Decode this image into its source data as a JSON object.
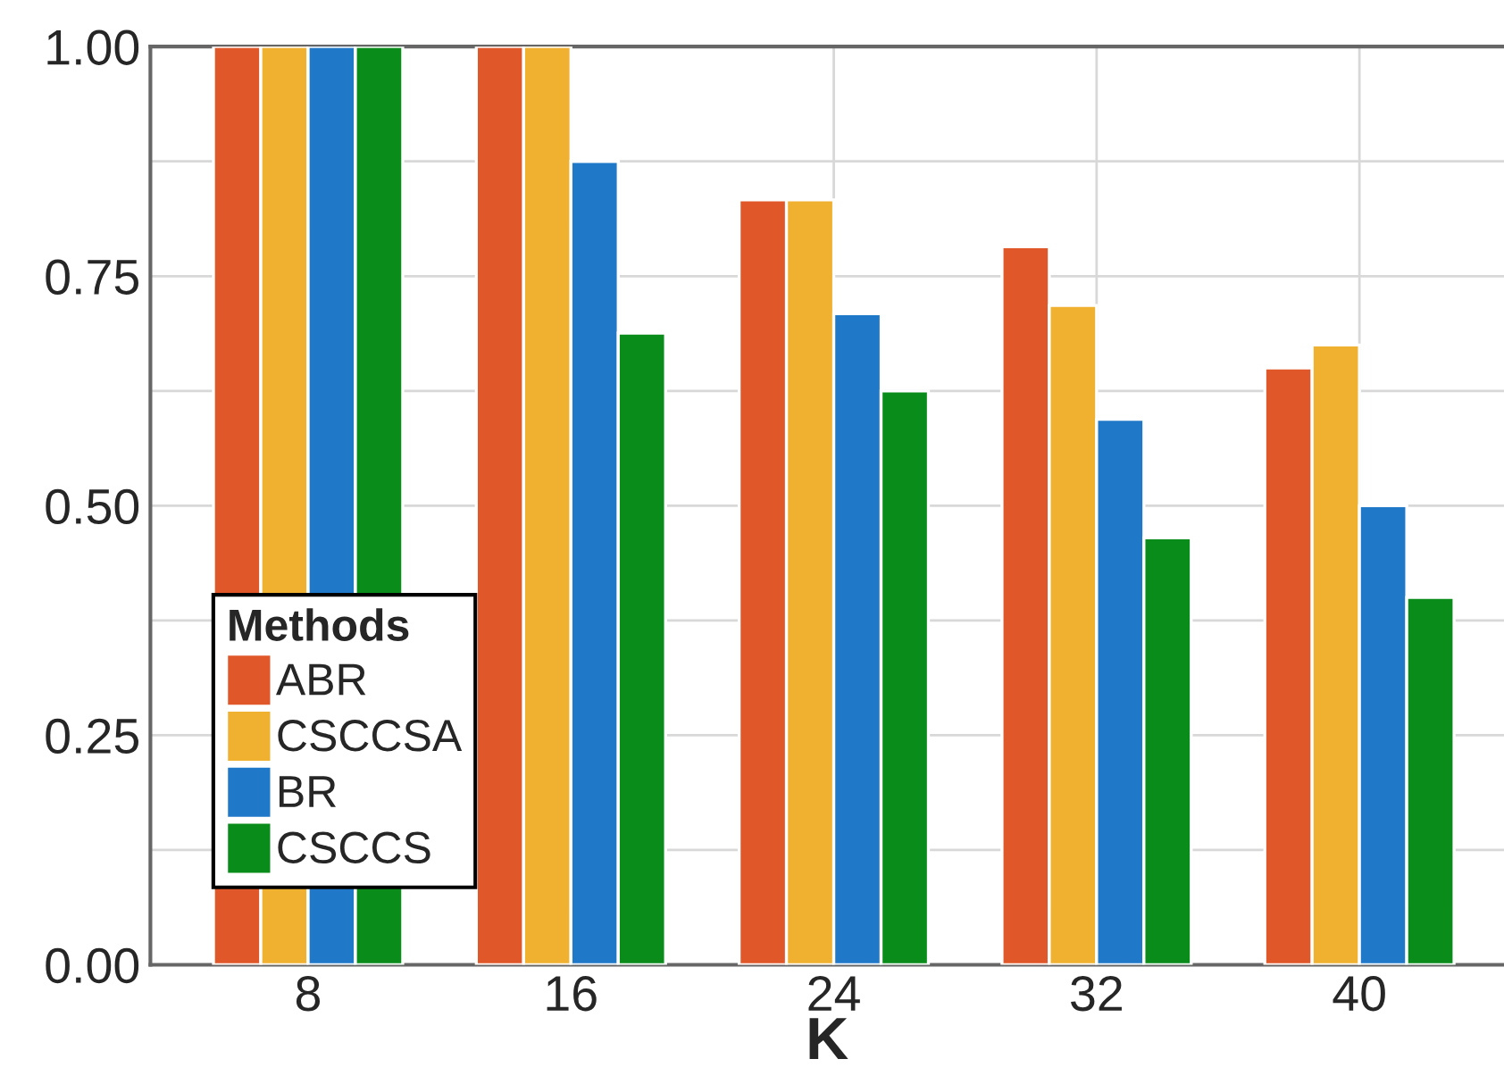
{
  "chart_data": {
    "type": "bar",
    "xlabel": "K",
    "legend_title": "Methods",
    "categories": [
      "8",
      "16",
      "24",
      "32",
      "40"
    ],
    "series": [
      {
        "name": "ABR",
        "color": "#e0582a",
        "values": [
          1.0,
          1.0,
          0.833,
          0.782,
          0.65
        ]
      },
      {
        "name": "CSCCSA",
        "color": "#f0b030",
        "values": [
          1.0,
          1.0,
          0.833,
          0.718,
          0.675
        ]
      },
      {
        "name": "BR",
        "color": "#1f78c8",
        "values": [
          1.0,
          0.875,
          0.709,
          0.594,
          0.5
        ]
      },
      {
        "name": "CSCCS",
        "color": "#0a8c1a",
        "values": [
          1.0,
          0.688,
          0.625,
          0.465,
          0.4
        ]
      }
    ],
    "ylim": [
      0,
      1
    ],
    "yticks": [
      {
        "value": 0,
        "label": "0.00"
      },
      {
        "value": 0.125,
        "label": null
      },
      {
        "value": 0.25,
        "label": "0.25"
      },
      {
        "value": 0.375,
        "label": null
      },
      {
        "value": 0.5,
        "label": "0.50"
      },
      {
        "value": 0.625,
        "label": null
      },
      {
        "value": 0.75,
        "label": "0.75"
      },
      {
        "value": 0.875,
        "label": null
      },
      {
        "value": 1,
        "label": "1.00"
      }
    ],
    "grid": true,
    "legend": "bottom left"
  }
}
